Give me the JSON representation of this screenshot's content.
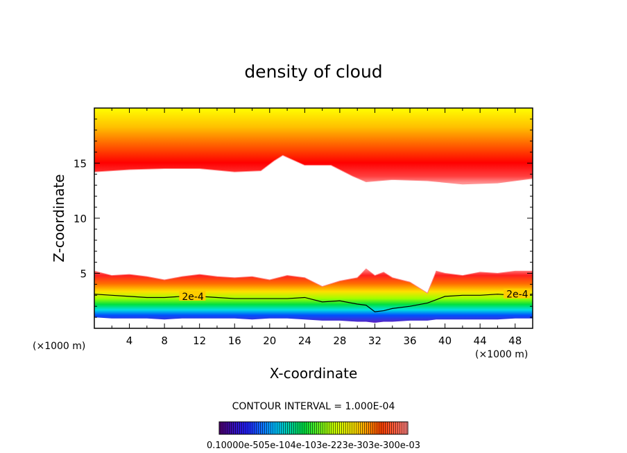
{
  "chart_data": {
    "type": "contour",
    "title": "density of cloud",
    "xlabel": "X-coordinate",
    "ylabel": "Z-coordinate",
    "x_unit": "(×1000 m)",
    "y_unit": "(×1000 m)",
    "xlim": [
      0,
      50
    ],
    "ylim": [
      0,
      20
    ],
    "x_ticks": [
      4,
      8,
      12,
      16,
      20,
      24,
      28,
      32,
      36,
      40,
      44,
      48
    ],
    "y_ticks": [
      5,
      10,
      15
    ],
    "contour_interval_text": "CONTOUR INTERVAL = 1.000E-04",
    "contour_labels": [
      "2e-4",
      "2e-4"
    ],
    "colorbar_label_text": "0.10000e-505e-104e-103e-223e-303e-300e-03",
    "colors": {
      "high": "#ff0000",
      "top": "#ffee00",
      "mid": "#ffa000",
      "low_green": "#00e020",
      "low_blue": "#0050ff",
      "low_violet": "#6020c0"
    },
    "upper_layer": {
      "x": [
        0,
        4,
        8,
        12,
        16,
        19,
        20.5,
        21.5,
        24,
        27,
        29.5,
        31,
        34,
        38,
        42,
        46,
        50
      ],
      "bottom_z": [
        14.2,
        14.4,
        14.5,
        14.5,
        14.2,
        14.3,
        15.2,
        15.7,
        14.8,
        14.8,
        13.8,
        13.3,
        13.5,
        13.4,
        13.1,
        13.2,
        13.6
      ]
    },
    "lower_layer": {
      "x": [
        0,
        2,
        4,
        6,
        8,
        10,
        12,
        14,
        16,
        18,
        20,
        22,
        24,
        26,
        28,
        30,
        31,
        32,
        33,
        34,
        36,
        38,
        39,
        40,
        42,
        44,
        46,
        48,
        50
      ],
      "top_z": [
        5.2,
        4.8,
        4.9,
        4.7,
        4.4,
        4.7,
        4.9,
        4.7,
        4.6,
        4.7,
        4.4,
        4.8,
        4.6,
        3.8,
        4.3,
        4.6,
        5.4,
        4.8,
        5.1,
        4.6,
        4.2,
        3.2,
        5.2,
        5.0,
        4.8,
        5.1,
        5.0,
        5.2,
        5.2
      ],
      "bottom_z": [
        1.0,
        0.9,
        0.9,
        0.9,
        0.8,
        0.9,
        0.9,
        0.9,
        0.9,
        0.8,
        0.9,
        0.9,
        0.8,
        0.7,
        0.7,
        0.6,
        0.6,
        0.5,
        0.6,
        0.6,
        0.7,
        0.7,
        0.8,
        0.8,
        0.8,
        0.8,
        0.8,
        0.9,
        0.9
      ],
      "contour_2e4_z": [
        3.1,
        3.0,
        2.9,
        2.8,
        2.8,
        2.9,
        2.9,
        2.8,
        2.7,
        2.7,
        2.7,
        2.7,
        2.8,
        2.4,
        2.5,
        2.2,
        2.1,
        1.5,
        1.6,
        1.8,
        2.0,
        2.3,
        2.6,
        2.9,
        3.0,
        3.0,
        3.1,
        3.0,
        3.1
      ]
    }
  }
}
